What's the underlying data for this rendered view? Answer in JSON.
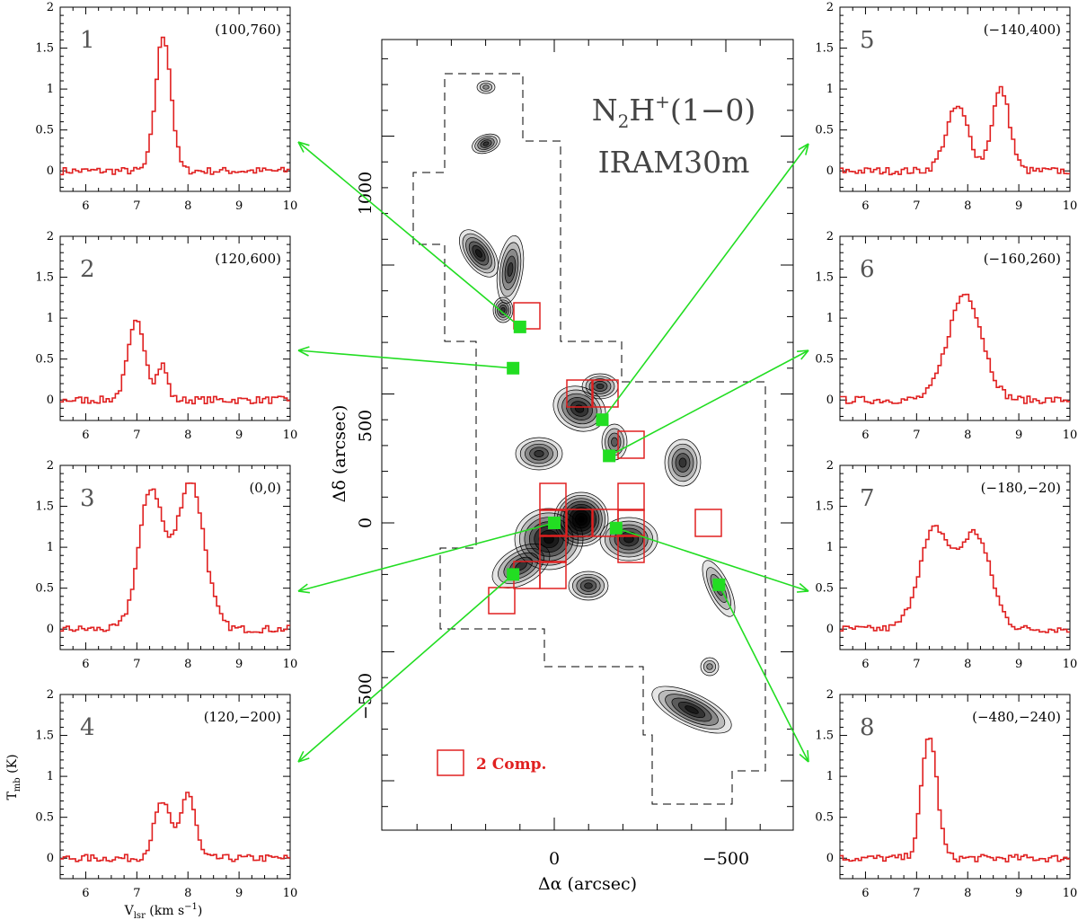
{
  "map": {
    "title_species": "N",
    "title_sub": "2",
    "title_ion": "H",
    "title_sup": "+",
    "title_line": "(1−0)",
    "title_telescope": "IRAM30m",
    "xlabel": "Δα (arcsec)",
    "ylabel": "Δδ (arcsec)",
    "xticks": [
      "0",
      "−500"
    ],
    "yticks": [
      "1000",
      "500",
      "0",
      "−500"
    ],
    "legend_label": "2 Comp.",
    "colors": {
      "boxes": "#e02020",
      "markers": "#22dd22",
      "arrows": "#22dd22",
      "contours": "#000000"
    }
  },
  "shared_axes": {
    "ylabel": "T",
    "ylabel_sub": "mb",
    "ylabel_unit": " (K)",
    "xlabel": "V",
    "xlabel_sub": "lsr",
    "xlabel_unit": " (km s",
    "xlabel_sup": "−1",
    "xlabel_close": ")"
  },
  "chart_data": [
    {
      "type": "line",
      "panel": "1",
      "position_label": "(100,760)",
      "xlim": [
        5.5,
        10
      ],
      "ylim": [
        -0.25,
        2
      ],
      "xticks": [
        6,
        7,
        8,
        9,
        10
      ],
      "yticks": [
        0,
        0.5,
        1,
        1.5,
        2
      ],
      "components": [
        [
          7.52,
          1.65,
          0.15
        ]
      ],
      "offset": [
        100,
        760
      ]
    },
    {
      "type": "line",
      "panel": "2",
      "position_label": "(120,600)",
      "xlim": [
        5.5,
        10
      ],
      "ylim": [
        -0.25,
        2
      ],
      "xticks": [
        6,
        7,
        8,
        9,
        10
      ],
      "yticks": [
        0,
        0.5,
        1,
        1.5,
        2
      ],
      "components": [
        [
          7.0,
          0.95,
          0.17
        ],
        [
          7.5,
          0.42,
          0.1
        ]
      ],
      "offset": [
        120,
        600
      ]
    },
    {
      "type": "line",
      "panel": "3",
      "position_label": "(0,0)",
      "xlim": [
        5.5,
        10
      ],
      "ylim": [
        -0.25,
        2
      ],
      "xticks": [
        6,
        7,
        8,
        9,
        10
      ],
      "yticks": [
        0,
        0.5,
        1,
        1.5,
        2
      ],
      "components": [
        [
          7.28,
          1.7,
          0.24
        ],
        [
          8.05,
          1.8,
          0.27
        ]
      ],
      "offset": [
        0,
        0
      ]
    },
    {
      "type": "line",
      "panel": "4",
      "position_label": "(120,−200)",
      "xlim": [
        5.5,
        10
      ],
      "ylim": [
        -0.25,
        2
      ],
      "xticks": [
        6,
        7,
        8,
        9,
        10
      ],
      "yticks": [
        0,
        0.5,
        1,
        1.5,
        2
      ],
      "components": [
        [
          7.5,
          0.68,
          0.16
        ],
        [
          8.0,
          0.8,
          0.14
        ]
      ],
      "offset": [
        120,
        -200
      ]
    },
    {
      "type": "line",
      "panel": "5",
      "position_label": "(−140,400)",
      "xlim": [
        5.5,
        10
      ],
      "ylim": [
        -0.25,
        2
      ],
      "xticks": [
        6,
        7,
        8,
        9,
        10
      ],
      "yticks": [
        0,
        0.5,
        1,
        1.5,
        2
      ],
      "components": [
        [
          7.8,
          0.78,
          0.22
        ],
        [
          8.65,
          1.0,
          0.17
        ]
      ],
      "offset": [
        -140,
        400
      ]
    },
    {
      "type": "line",
      "panel": "6",
      "position_label": "(−160,260)",
      "xlim": [
        5.5,
        10
      ],
      "ylim": [
        -0.25,
        2
      ],
      "xticks": [
        6,
        7,
        8,
        9,
        10
      ],
      "yticks": [
        0,
        0.5,
        1,
        1.5,
        2
      ],
      "components": [
        [
          7.95,
          1.3,
          0.33
        ]
      ],
      "offset": [
        -160,
        260
      ]
    },
    {
      "type": "line",
      "panel": "7",
      "position_label": "(−180,−20)",
      "xlim": [
        5.5,
        10
      ],
      "ylim": [
        -0.25,
        2
      ],
      "xticks": [
        6,
        7,
        8,
        9,
        10
      ],
      "yticks": [
        0,
        0.5,
        1,
        1.5,
        2
      ],
      "components": [
        [
          7.35,
          1.2,
          0.3
        ],
        [
          8.15,
          1.15,
          0.3
        ]
      ],
      "offset": [
        -180,
        -20
      ]
    },
    {
      "type": "line",
      "panel": "8",
      "position_label": "(−480,−240)",
      "xlim": [
        5.5,
        10
      ],
      "ylim": [
        -0.25,
        2
      ],
      "xticks": [
        6,
        7,
        8,
        9,
        10
      ],
      "yticks": [
        0,
        0.5,
        1,
        1.5,
        2
      ],
      "components": [
        [
          7.25,
          1.5,
          0.15
        ]
      ],
      "offset": [
        -480,
        -240
      ]
    }
  ]
}
